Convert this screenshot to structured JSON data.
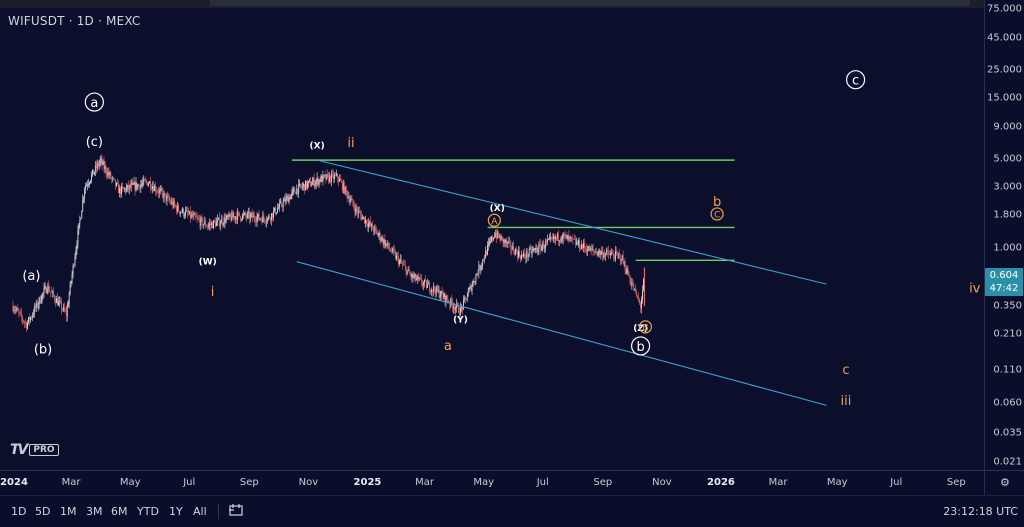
{
  "symbol_title": "WIFUSDT · 1D · MEXC",
  "price_badge": {
    "price": "0.604",
    "countdown": "47:42"
  },
  "logo": {
    "mark": "TV",
    "badge": "PRO"
  },
  "timeframes": [
    "1D",
    "5D",
    "1M",
    "3M",
    "6M",
    "YTD",
    "1Y",
    "All"
  ],
  "clock": "23:12:18 UTC",
  "colors": {
    "background": "#0c0f2c",
    "horizontal_level": "#6fcf5d",
    "channel": "#3f9fd0",
    "wave_orange": "#f5a04a",
    "candle_up": "#e7e7e7",
    "candle_down": "#e06c6c"
  },
  "icons": {
    "compare": "compare-icon",
    "settings": "settings-gear-icon"
  },
  "chart_data": {
    "type": "candlestick",
    "title": "WIFUSDT · 1D · MEXC",
    "y_scale": "log",
    "y_ticks": [
      "75.000",
      "45.000",
      "25.000",
      "15.000",
      "9.000",
      "5.000",
      "3.000",
      "1.800",
      "1.000",
      "0.604",
      "0.350",
      "0.210",
      "0.110",
      "0.060",
      "0.035",
      "0.021"
    ],
    "x_ticks": [
      "2024",
      "Mar",
      "May",
      "Jul",
      "Sep",
      "Nov",
      "2025",
      "Mar",
      "May",
      "Jul",
      "Sep",
      "Nov",
      "2026",
      "Mar",
      "May",
      "Jul",
      "Sep"
    ],
    "last_price": 0.604,
    "price_path": [
      {
        "date": "2024-01-01",
        "price": 0.35
      },
      {
        "date": "2024-01-15",
        "price": 0.25
      },
      {
        "date": "2024-02-05",
        "price": 0.5
      },
      {
        "date": "2024-02-25",
        "price": 0.3
      },
      {
        "date": "2024-03-15",
        "price": 3.0
      },
      {
        "date": "2024-03-31",
        "price": 4.8
      },
      {
        "date": "2024-04-20",
        "price": 2.8
      },
      {
        "date": "2024-05-20",
        "price": 3.3
      },
      {
        "date": "2024-06-20",
        "price": 2.0
      },
      {
        "date": "2024-07-20",
        "price": 1.5
      },
      {
        "date": "2024-08-20",
        "price": 1.8
      },
      {
        "date": "2024-09-20",
        "price": 1.7
      },
      {
        "date": "2024-10-20",
        "price": 2.9
      },
      {
        "date": "2024-11-15",
        "price": 3.5
      },
      {
        "date": "2024-12-01",
        "price": 3.6
      },
      {
        "date": "2024-12-20",
        "price": 2.0
      },
      {
        "date": "2025-01-15",
        "price": 1.2
      },
      {
        "date": "2025-02-15",
        "price": 0.6
      },
      {
        "date": "2025-03-15",
        "price": 0.45
      },
      {
        "date": "2025-04-07",
        "price": 0.32
      },
      {
        "date": "2025-05-12",
        "price": 1.3
      },
      {
        "date": "2025-06-10",
        "price": 0.85
      },
      {
        "date": "2025-07-20",
        "price": 1.25
      },
      {
        "date": "2025-08-20",
        "price": 0.95
      },
      {
        "date": "2025-09-20",
        "price": 0.85
      },
      {
        "date": "2025-10-10",
        "price": 0.35
      },
      {
        "date": "2025-10-14",
        "price": 0.604
      }
    ],
    "horizontal_levels": [
      4.9,
      1.45,
      0.8
    ],
    "channel": {
      "upper": [
        {
          "date": "2024-11-10",
          "price": 4.9
        },
        {
          "date": "2026-04-20",
          "price": 0.52
        }
      ],
      "lower": [
        {
          "date": "2024-11-10",
          "price": 0.8
        },
        {
          "date": "2026-04-20",
          "price": 0.058
        }
      ]
    },
    "annotations": [
      {
        "text": "a",
        "style": "circled",
        "color": "white",
        "date": "2024-03-25",
        "price": 14.0
      },
      {
        "text": "(c)",
        "color": "white",
        "date": "2024-03-25",
        "price": 6.8
      },
      {
        "text": "(a)",
        "color": "white",
        "date": "2024-01-20",
        "price": 0.6
      },
      {
        "text": "(b)",
        "color": "white",
        "date": "2024-02-01",
        "price": 0.16
      },
      {
        "text": "(W)",
        "color": "white",
        "date": "2024-07-20",
        "price": 0.8
      },
      {
        "text": "i",
        "color": "orange",
        "date": "2024-07-25",
        "price": 0.45
      },
      {
        "text": "(X)",
        "color": "white",
        "date": "2024-11-10",
        "price": 6.5
      },
      {
        "text": "ii",
        "color": "orange",
        "date": "2024-12-15",
        "price": 6.7
      },
      {
        "text": "(Y)",
        "color": "white",
        "date": "2025-04-07",
        "price": 0.28
      },
      {
        "text": "a",
        "color": "orange",
        "date": "2025-03-25",
        "price": 0.17
      },
      {
        "text": "(X)",
        "color": "white",
        "date": "2025-05-15",
        "price": 2.1
      },
      {
        "text": "A",
        "style": "circled",
        "color": "orange",
        "date": "2025-05-12",
        "price": 1.65
      },
      {
        "text": "b",
        "color": "orange",
        "date": "2025-12-28",
        "price": 2.3
      },
      {
        "text": "C",
        "style": "circled",
        "color": "orange",
        "date": "2025-12-28",
        "price": 1.85
      },
      {
        "text": "(Z)",
        "color": "white",
        "date": "2025-10-10",
        "price": 0.24
      },
      {
        "text": "B",
        "style": "circled",
        "color": "orange",
        "date": "2025-10-15",
        "price": 0.24
      },
      {
        "text": "b",
        "style": "circled",
        "color": "white",
        "date": "2025-10-10",
        "price": 0.17
      },
      {
        "text": "c",
        "style": "circled",
        "color": "white",
        "date": "2026-05-20",
        "price": 21.0
      },
      {
        "text": "c",
        "color": "orange",
        "date": "2026-05-10",
        "price": 0.11
      },
      {
        "text": "iii",
        "color": "orange",
        "date": "2026-05-10",
        "price": 0.063
      },
      {
        "text": "iv",
        "color": "orange",
        "date": "2026-09-20",
        "price": 0.48
      }
    ]
  }
}
